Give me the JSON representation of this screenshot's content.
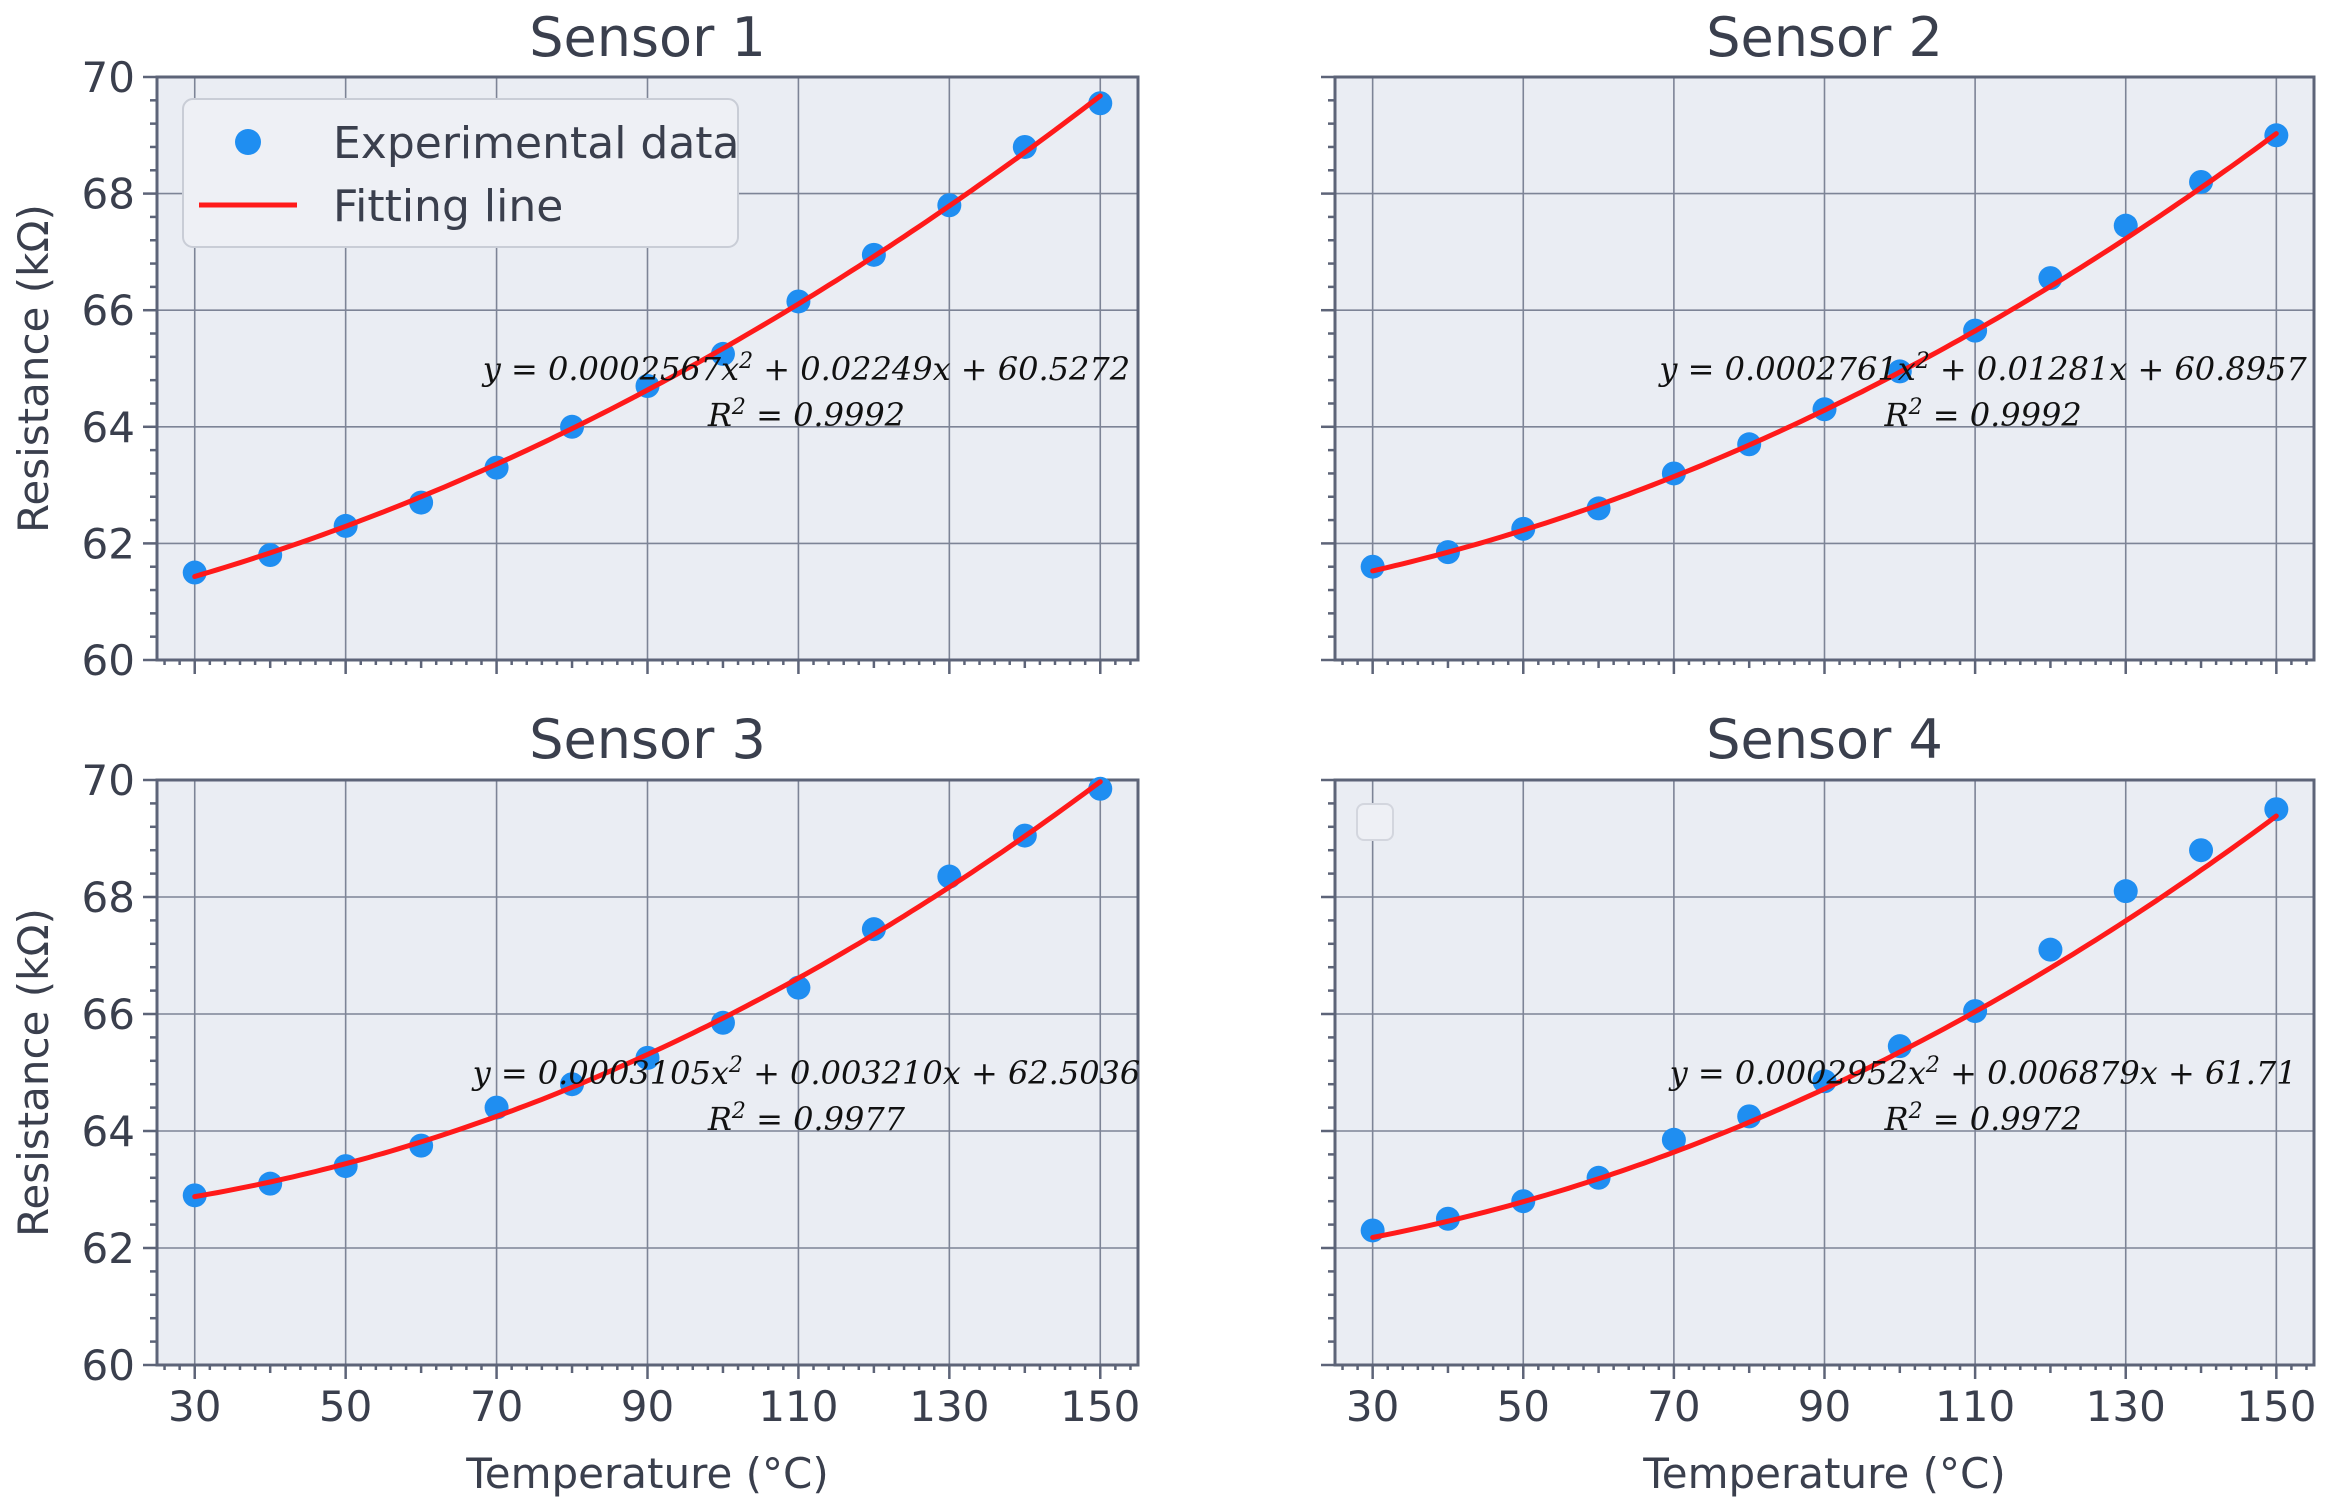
{
  "chart_data": [
    {
      "type": "scatter",
      "title": "Sensor 1",
      "xlabel": "",
      "ylabel": "Resistance (kΩ)",
      "xlim": [
        25,
        155
      ],
      "ylim": [
        60,
        70
      ],
      "x_ticks": [
        30,
        50,
        70,
        90,
        110,
        130,
        150
      ],
      "y_ticks": [
        60,
        62,
        64,
        66,
        68,
        70
      ],
      "show_x_tick_labels": false,
      "show_y_tick_labels": true,
      "grid": true,
      "legend": {
        "position": "top-left",
        "entries": [
          "Experimental data",
          "Fitting line"
        ]
      },
      "series": [
        {
          "name": "Experimental data",
          "kind": "scatter",
          "color": "#1f8ef1",
          "x": [
            30,
            40,
            50,
            60,
            70,
            80,
            90,
            100,
            110,
            120,
            130,
            140,
            150
          ],
          "y": [
            61.5,
            61.8,
            62.3,
            62.7,
            63.3,
            64.0,
            64.7,
            65.25,
            66.15,
            66.95,
            67.8,
            68.8,
            69.55
          ]
        },
        {
          "name": "Fitting line",
          "kind": "line",
          "color": "#ff1a1a",
          "coefficients": [
            0.0002567,
            0.02249,
            60.5272
          ]
        }
      ],
      "annotation": {
        "equation": "y = 0.0002567x² + 0.02249x + 60.5272",
        "r2": "R² = 0.9992"
      }
    },
    {
      "type": "scatter",
      "title": "Sensor 2",
      "xlabel": "",
      "ylabel": "",
      "xlim": [
        25,
        155
      ],
      "ylim": [
        60,
        70
      ],
      "x_ticks": [
        30,
        50,
        70,
        90,
        110,
        130,
        150
      ],
      "y_ticks": [
        60,
        62,
        64,
        66,
        68,
        70
      ],
      "show_x_tick_labels": false,
      "show_y_tick_labels": false,
      "grid": true,
      "series": [
        {
          "name": "Experimental data",
          "kind": "scatter",
          "color": "#1f8ef1",
          "x": [
            30,
            40,
            50,
            60,
            70,
            80,
            90,
            100,
            110,
            120,
            130,
            140,
            150
          ],
          "y": [
            61.6,
            61.85,
            62.25,
            62.6,
            63.2,
            63.7,
            64.3,
            64.95,
            65.65,
            66.55,
            67.45,
            68.2,
            69.0
          ]
        },
        {
          "name": "Fitting line",
          "kind": "line",
          "color": "#ff1a1a",
          "coefficients": [
            0.0002761,
            0.01281,
            60.8957
          ]
        }
      ],
      "annotation": {
        "equation": "y = 0.0002761x² + 0.01281x + 60.8957",
        "r2": "R² = 0.9992"
      }
    },
    {
      "type": "scatter",
      "title": "Sensor 3",
      "xlabel": "Temperature (°C)",
      "ylabel": "Resistance (kΩ)",
      "xlim": [
        25,
        155
      ],
      "ylim": [
        60,
        70
      ],
      "x_ticks": [
        30,
        50,
        70,
        90,
        110,
        130,
        150
      ],
      "y_ticks": [
        60,
        62,
        64,
        66,
        68,
        70
      ],
      "show_x_tick_labels": true,
      "show_y_tick_labels": true,
      "grid": true,
      "series": [
        {
          "name": "Experimental data",
          "kind": "scatter",
          "color": "#1f8ef1",
          "x": [
            30,
            40,
            50,
            60,
            70,
            80,
            90,
            100,
            110,
            120,
            130,
            140,
            150
          ],
          "y": [
            62.9,
            63.1,
            63.4,
            63.75,
            64.4,
            64.8,
            65.25,
            65.85,
            66.45,
            67.45,
            68.35,
            69.05,
            69.85
          ]
        },
        {
          "name": "Fitting line",
          "kind": "line",
          "color": "#ff1a1a",
          "coefficients": [
            0.0003105,
            0.00321,
            62.5036
          ]
        }
      ],
      "annotation": {
        "equation": "y = 0.0003105x² + 0.003210x + 62.5036",
        "r2": "R² = 0.9977"
      }
    },
    {
      "type": "scatter",
      "title": "Sensor 4",
      "xlabel": "Temperature (°C)",
      "ylabel": "",
      "xlim": [
        25,
        155
      ],
      "ylim": [
        60,
        70
      ],
      "x_ticks": [
        30,
        50,
        70,
        90,
        110,
        130,
        150
      ],
      "y_ticks": [
        60,
        62,
        64,
        66,
        68,
        70
      ],
      "show_x_tick_labels": true,
      "show_y_tick_labels": false,
      "grid": true,
      "empty_legend": true,
      "series": [
        {
          "name": "Experimental data",
          "kind": "scatter",
          "color": "#1f8ef1",
          "x": [
            30,
            40,
            50,
            60,
            70,
            80,
            90,
            100,
            110,
            120,
            130,
            140,
            150
          ],
          "y": [
            62.3,
            62.5,
            62.8,
            63.2,
            63.85,
            64.25,
            64.85,
            65.45,
            66.05,
            67.1,
            68.1,
            68.8,
            69.5
          ]
        },
        {
          "name": "Fitting line",
          "kind": "line",
          "color": "#ff1a1a",
          "coefficients": [
            0.0002952,
            0.006879,
            61.71
          ]
        }
      ],
      "annotation": {
        "equation": "y = 0.0002952x² + 0.006879x + 61.71",
        "r2": "R² = 0.9972"
      }
    }
  ],
  "colors": {
    "plot_background": "#eaedf3",
    "grid": "#6b7286",
    "axis": "#5d6478",
    "text": "#3a3f4d"
  }
}
